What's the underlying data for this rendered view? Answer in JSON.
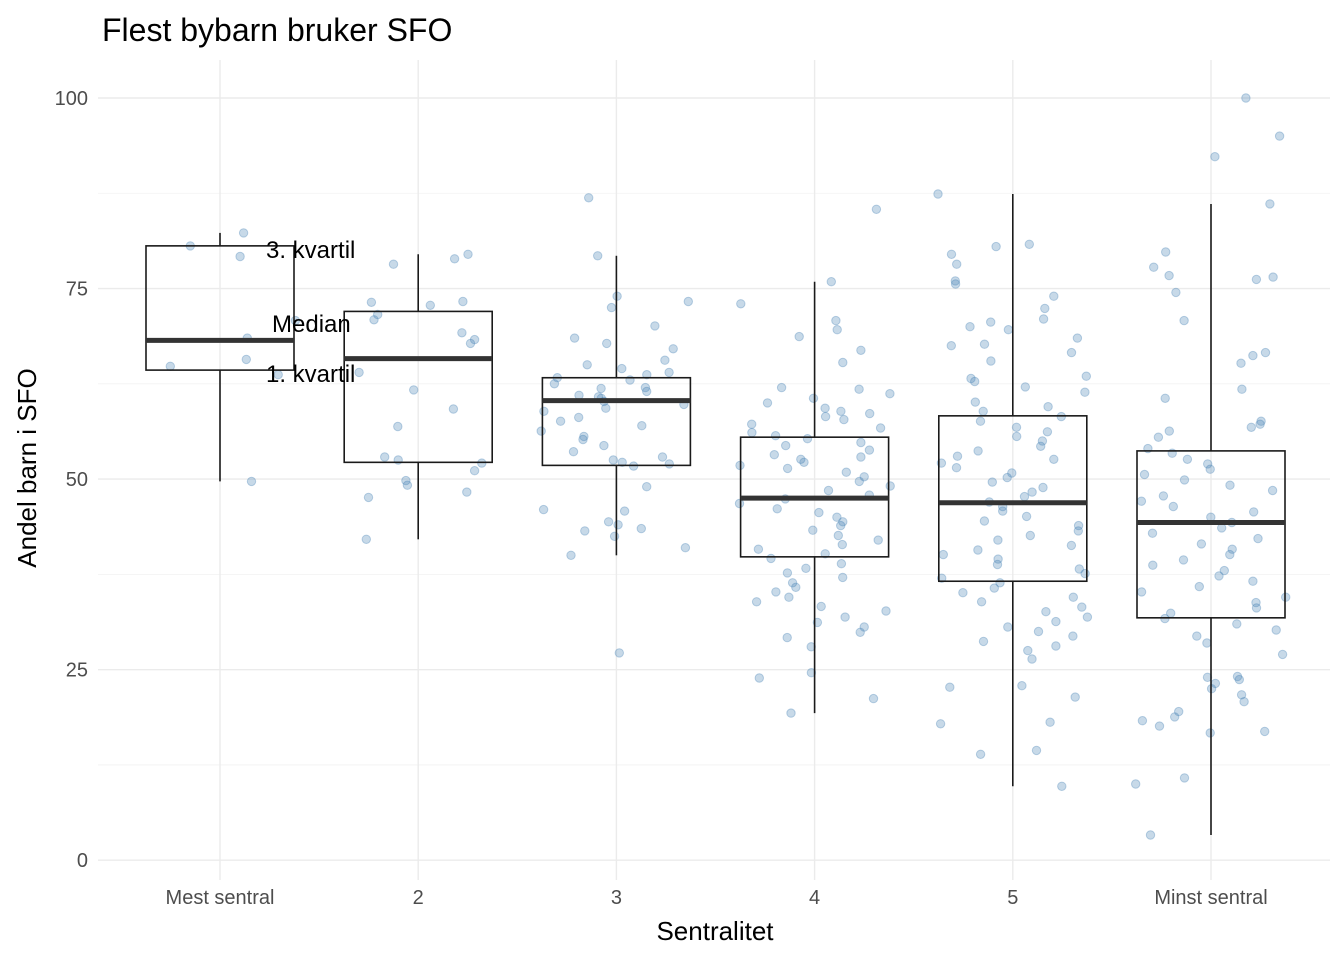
{
  "chart_data": {
    "type": "boxplot",
    "title": "Flest bybarn bruker SFO",
    "xlabel": "Sentralitet",
    "ylabel": "Andel barn i SFO",
    "ylim": [
      -3,
      104
    ],
    "y_ticks": [
      0,
      25,
      50,
      75,
      100
    ],
    "y_tick_labels": [
      "0",
      "25",
      "50",
      "75",
      "100"
    ],
    "grid": true,
    "categories": [
      "Mest sentral",
      "2",
      "3",
      "4",
      "5",
      "Minst sentral"
    ],
    "boxes": [
      {
        "category": "Mest sentral",
        "q1": 64.3,
        "median": 68.2,
        "q3": 80.6,
        "whisker_low": 49.7,
        "whisker_high": 82.3
      },
      {
        "category": "2",
        "q1": 52.2,
        "median": 65.8,
        "q3": 72.0,
        "whisker_low": 42.1,
        "whisker_high": 79.5
      },
      {
        "category": "3",
        "q1": 51.8,
        "median": 60.3,
        "q3": 63.3,
        "whisker_low": 40.0,
        "whisker_high": 79.3
      },
      {
        "category": "4",
        "q1": 39.8,
        "median": 47.5,
        "q3": 55.5,
        "whisker_low": 19.3,
        "whisker_high": 75.9
      },
      {
        "category": "5",
        "q1": 36.6,
        "median": 46.9,
        "q3": 58.3,
        "whisker_low": 9.7,
        "whisker_high": 87.4
      },
      {
        "category": "Minst sentral",
        "q1": 31.8,
        "median": 44.3,
        "q3": 53.7,
        "whisker_low": 3.3,
        "whisker_high": 86.1
      }
    ],
    "jitter_points": [
      {
        "category": "Mest sentral",
        "values": [
          82.3,
          80.6,
          79.2,
          70.8,
          68.5,
          65.7,
          64.8,
          63.7,
          49.7
        ]
      },
      {
        "category": "2",
        "values": [
          79.5,
          78.9,
          78.2,
          73.3,
          73.2,
          72.8,
          71.6,
          70.9,
          69.2,
          68.3,
          67.8,
          64.0,
          61.7,
          59.2,
          56.9,
          52.9,
          52.5,
          52.1,
          51.1,
          49.8,
          49.2,
          48.3,
          47.6,
          42.1
        ]
      },
      {
        "category": "3",
        "values": [
          86.9,
          79.3,
          74.0,
          73.3,
          72.5,
          70.1,
          68.5,
          67.8,
          67.1,
          65.6,
          65.0,
          64.5,
          64.0,
          63.7,
          63.3,
          63.0,
          62.5,
          62.0,
          61.9,
          61.5,
          61.0,
          60.8,
          60.6,
          60.2,
          59.8,
          59.3,
          58.9,
          58.1,
          57.6,
          57.0,
          56.3,
          55.6,
          55.2,
          54.4,
          53.6,
          52.9,
          52.5,
          52.2,
          52.0,
          51.7,
          49.0,
          46.0,
          45.8,
          44.4,
          44.0,
          43.5,
          43.2,
          42.5,
          41.0,
          40.0,
          27.2
        ]
      },
      {
        "category": "4",
        "values": [
          85.4,
          75.9,
          73.0,
          70.8,
          69.6,
          68.7,
          66.9,
          65.3,
          62.0,
          61.8,
          61.2,
          60.6,
          60.0,
          59.3,
          58.9,
          58.6,
          58.2,
          57.8,
          57.2,
          56.7,
          56.1,
          55.7,
          55.3,
          54.8,
          54.4,
          53.8,
          53.2,
          52.9,
          52.6,
          52.2,
          51.8,
          51.4,
          50.9,
          50.3,
          49.7,
          49.1,
          48.5,
          47.9,
          47.4,
          46.8,
          46.1,
          45.6,
          45.0,
          44.4,
          43.9,
          43.3,
          42.6,
          42.0,
          41.4,
          40.8,
          40.2,
          39.6,
          38.9,
          38.3,
          37.7,
          37.1,
          36.4,
          35.8,
          35.2,
          34.5,
          33.9,
          33.3,
          32.7,
          31.9,
          31.2,
          30.6,
          29.9,
          29.2,
          28.0,
          24.6,
          23.9,
          21.2,
          19.3
        ]
      },
      {
        "category": "5",
        "values": [
          87.4,
          80.8,
          80.5,
          79.5,
          78.2,
          76.0,
          75.6,
          74.0,
          72.4,
          71.0,
          70.6,
          70.0,
          69.6,
          68.5,
          67.7,
          67.5,
          66.6,
          65.5,
          63.5,
          63.2,
          62.8,
          62.1,
          61.4,
          60.1,
          59.5,
          58.9,
          58.2,
          57.6,
          56.8,
          56.2,
          55.6,
          55.0,
          54.3,
          53.7,
          53.0,
          52.6,
          52.1,
          51.5,
          50.8,
          50.2,
          49.6,
          48.9,
          48.3,
          47.7,
          47.0,
          46.4,
          45.8,
          45.1,
          44.5,
          43.9,
          43.2,
          42.6,
          42.0,
          41.3,
          40.7,
          40.1,
          39.5,
          38.8,
          38.2,
          37.6,
          37.0,
          36.4,
          35.7,
          35.1,
          34.5,
          33.9,
          33.2,
          32.6,
          31.9,
          31.3,
          30.6,
          30.0,
          29.4,
          28.7,
          28.1,
          27.5,
          26.4,
          22.9,
          22.7,
          21.4,
          18.1,
          17.9,
          14.4,
          13.9,
          9.7
        ]
      },
      {
        "category": "Minst sentral",
        "values": [
          100.0,
          95.0,
          92.3,
          86.1,
          79.8,
          77.8,
          76.7,
          76.5,
          76.2,
          74.5,
          70.8,
          66.6,
          66.2,
          65.2,
          61.8,
          60.6,
          57.6,
          57.2,
          56.8,
          56.3,
          55.5,
          54.0,
          53.4,
          52.6,
          52.0,
          51.3,
          50.6,
          49.9,
          49.2,
          48.5,
          47.8,
          47.1,
          46.4,
          45.7,
          45.0,
          44.3,
          43.6,
          42.9,
          42.2,
          41.5,
          40.8,
          40.1,
          39.4,
          38.7,
          38.0,
          37.3,
          36.6,
          35.9,
          35.2,
          34.5,
          33.8,
          33.1,
          32.4,
          31.7,
          31.0,
          30.2,
          29.4,
          28.5,
          27.0,
          24.1,
          24.0,
          23.7,
          23.2,
          22.5,
          21.7,
          20.8,
          19.5,
          18.8,
          18.3,
          17.6,
          16.9,
          16.7,
          10.8,
          10.0,
          3.3
        ]
      }
    ],
    "annotations": [
      {
        "text": "3. kvartil",
        "x": "Mest sentral",
        "y": 80.6
      },
      {
        "text": "Median",
        "x": "Mest sentral",
        "y": 70.5
      },
      {
        "text": "1. kvartil",
        "x": "Mest sentral",
        "y": 64.3
      }
    ]
  }
}
